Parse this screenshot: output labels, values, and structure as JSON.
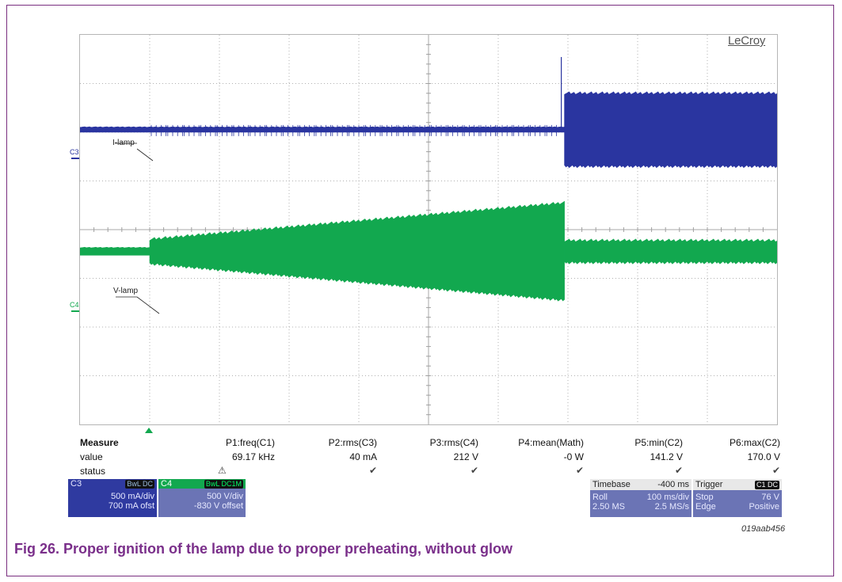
{
  "brand": "LeCroy",
  "chart_data": {
    "type": "line",
    "title": "",
    "xlabel": "",
    "ylabel": "",
    "grid": true,
    "divisions": {
      "x": 10,
      "y": 8
    },
    "series": [
      {
        "name": "I-lamp",
        "channel": "C3",
        "color": "#2a35a0",
        "segments": [
          {
            "x": [
              0.0,
              6.95
            ],
            "amplitude_div": 0.1
          },
          {
            "x": [
              6.95,
              10.0
            ],
            "amplitude_div": 1.45
          }
        ],
        "spike_at_div": 6.95
      },
      {
        "name": "V-lamp",
        "channel": "C4",
        "color": "#12a84f",
        "segments": [
          {
            "x": [
              0.0,
              1.0
            ],
            "amplitude_div": 0.15
          },
          {
            "x": [
              1.0,
              6.95
            ],
            "amplitude_div_start": 0.45,
            "amplitude_div_end": 1.95
          },
          {
            "x": [
              6.95,
              10.0
            ],
            "amplitude_div": 0.4
          }
        ]
      }
    ],
    "trigger_div": 1.0
  },
  "channels": {
    "c3_label": "C3",
    "c4_label": "C4",
    "i_label": "I-lamp",
    "v_label": "V-lamp"
  },
  "measure": {
    "title": "Measure",
    "row_value": "value",
    "row_status": "status",
    "params": [
      {
        "name": "P1:freq(C1)",
        "value": "69.17 kHz",
        "status": "⚠"
      },
      {
        "name": "P2:rms(C3)",
        "value": "40 mA",
        "status": "✔"
      },
      {
        "name": "P3:rms(C4)",
        "value": "212 V",
        "status": "✔"
      },
      {
        "name": "P4:mean(Math)",
        "value": "-0 W",
        "status": "✔"
      },
      {
        "name": "P5:min(C2)",
        "value": "141.2 V",
        "status": "✔"
      },
      {
        "name": "P6:max(C2)",
        "value": "170.0 V",
        "status": "✔"
      }
    ]
  },
  "c3_box": {
    "name": "C3",
    "tag": "BwL DC",
    "vdiv": "500 mA/div",
    "offset": "700 mA ofst"
  },
  "c4_box": {
    "name": "C4",
    "tag": "BwL DC1M",
    "vdiv": "500 V/div",
    "offset": "-830 V offset"
  },
  "timebase": {
    "label": "Timebase",
    "value": "-400 ms",
    "mode": "Roll",
    "tdiv": "100 ms/div",
    "samples": "2.50 MS",
    "rate": "2.5 MS/s"
  },
  "trigger": {
    "label": "Trigger",
    "tag": "C1 DC",
    "mode": "Stop",
    "level": "76 V",
    "type": "Edge",
    "slope": "Positive"
  },
  "figure_id": "019aab456",
  "caption": "Fig 26.   Proper ignition of the lamp due to proper preheating, without glow"
}
